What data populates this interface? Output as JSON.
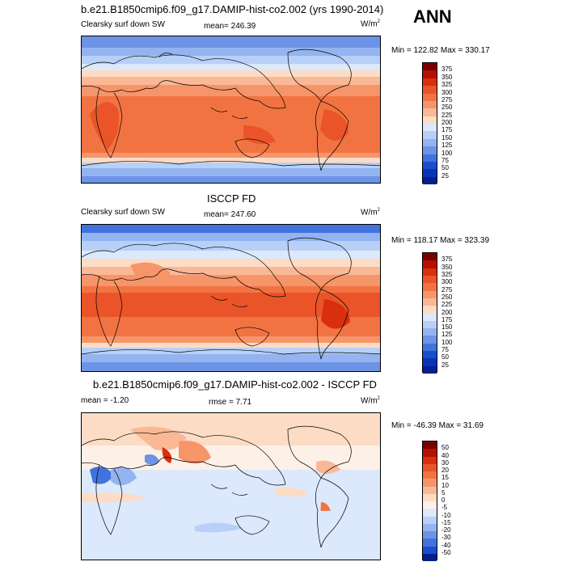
{
  "season": "ANN",
  "units_base": "W/m",
  "units_exp": "2",
  "panels": [
    {
      "title": "b.e21.B1850cmip6.f09_g17.DAMIP-hist-co2.002 (yrs 1990-2014)",
      "left_label": "Clearsky surf down SW",
      "center_label": "mean= 246.39",
      "minmax": "Min = 122.82 Max = 330.17"
    },
    {
      "title": "ISCCP FD",
      "left_label": "Clearsky surf down SW",
      "center_label": "mean= 247.60",
      "minmax": "Min = 118.17 Max = 323.39"
    },
    {
      "title": "b.e21.B1850cmip6.f09_g17.DAMIP-hist-co2.002 - ISCCP FD",
      "left_label": "mean =  -1.20",
      "center_label": "rmse =  7.71",
      "minmax": "Min = -46.39 Max =  31.69"
    }
  ],
  "levels_abs": [
    "375",
    "350",
    "325",
    "300",
    "275",
    "250",
    "225",
    "200",
    "175",
    "150",
    "125",
    "100",
    "75",
    "50",
    "25"
  ],
  "levels_diff": [
    "50",
    "40",
    "30",
    "20",
    "15",
    "10",
    "5",
    "0",
    "-5",
    "-10",
    "-15",
    "-20",
    "-30",
    "-40",
    "-50"
  ],
  "colors_abs": [
    "#7a0000",
    "#b51000",
    "#d92f0e",
    "#ea5428",
    "#f27342",
    "#f6956a",
    "#fab896",
    "#fcdcc4",
    "#dce8fb",
    "#b8d0f7",
    "#93b4f0",
    "#6c93e6",
    "#4273dd",
    "#1a4ed0",
    "#0833b8",
    "#051f8e"
  ],
  "colors_diff": [
    "#7a0000",
    "#b51000",
    "#d92f0e",
    "#ea5428",
    "#f27342",
    "#f6956a",
    "#fab896",
    "#fcdcc4",
    "#fdf0e6",
    "#dce8fb",
    "#b8d0f7",
    "#93b4f0",
    "#6c93e6",
    "#4273dd",
    "#1a4ed0",
    "#051f8e"
  ]
}
